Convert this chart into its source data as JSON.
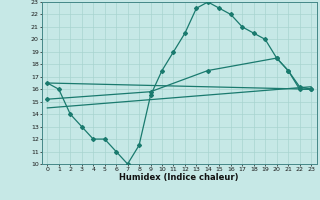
{
  "xlabel": "Humidex (Indice chaleur)",
  "xlim": [
    -0.5,
    23.5
  ],
  "ylim": [
    10,
    23
  ],
  "xticks": [
    0,
    1,
    2,
    3,
    4,
    5,
    6,
    7,
    8,
    9,
    10,
    11,
    12,
    13,
    14,
    15,
    16,
    17,
    18,
    19,
    20,
    21,
    22,
    23
  ],
  "yticks": [
    10,
    11,
    12,
    13,
    14,
    15,
    16,
    17,
    18,
    19,
    20,
    21,
    22,
    23
  ],
  "bg_color": "#c6e8e6",
  "line_color": "#1a7a6e",
  "grid_color": "#a8d4d0",
  "line1_x": [
    0,
    1,
    2,
    3,
    4,
    5,
    6,
    7,
    8,
    9,
    10,
    11,
    12,
    13,
    14,
    15,
    16,
    17,
    18,
    19,
    20,
    21,
    22,
    23
  ],
  "line1_y": [
    16.5,
    16.0,
    14.0,
    13.0,
    12.0,
    12.0,
    11.0,
    10.0,
    11.5,
    15.5,
    17.5,
    19.0,
    20.5,
    22.5,
    23.0,
    22.5,
    22.0,
    21.0,
    20.5,
    20.0,
    18.5,
    17.5,
    16.0,
    16.0
  ],
  "line2_x": [
    0,
    23
  ],
  "line2_y": [
    16.5,
    16.0
  ],
  "line3_x": [
    0,
    23
  ],
  "line3_y": [
    14.5,
    16.2
  ],
  "line4_x": [
    0,
    9,
    14,
    20,
    21,
    22,
    23
  ],
  "line4_y": [
    15.2,
    15.8,
    17.5,
    18.5,
    17.5,
    16.2,
    16.0
  ],
  "marker": "D",
  "markersize": 2.0,
  "linewidth": 0.9
}
